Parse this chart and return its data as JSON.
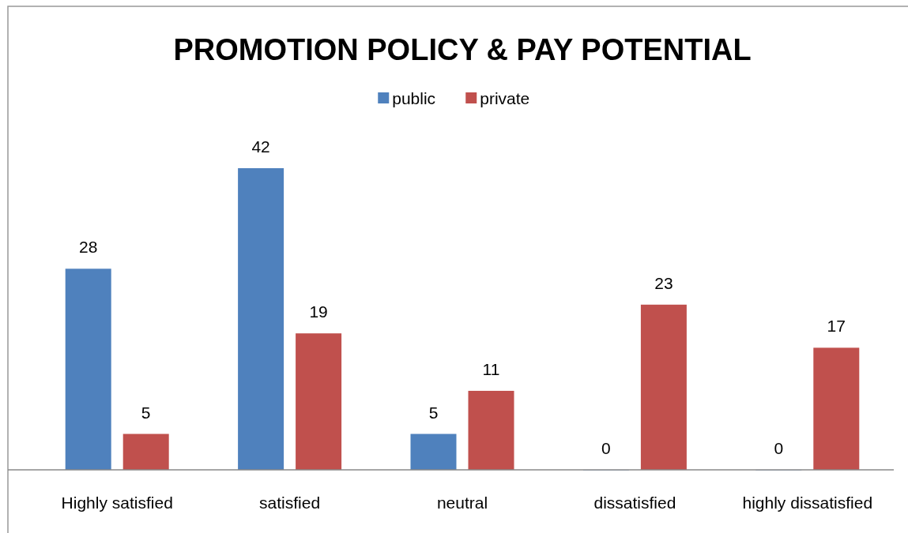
{
  "chart_data": {
    "type": "bar",
    "title": "PROMOTION POLICY & PAY POTENTIAL",
    "categories": [
      "Highly satisfied",
      "satisfied",
      "neutral",
      "dissatisfied",
      "highly dissatisfied"
    ],
    "series": [
      {
        "name": "public",
        "color": "#4f81bd",
        "values": [
          28,
          42,
          5,
          0,
          0
        ]
      },
      {
        "name": "private",
        "color": "#c0504d",
        "values": [
          5,
          19,
          11,
          23,
          17
        ]
      }
    ],
    "data_labels": true,
    "legend": "top",
    "grid": false
  }
}
